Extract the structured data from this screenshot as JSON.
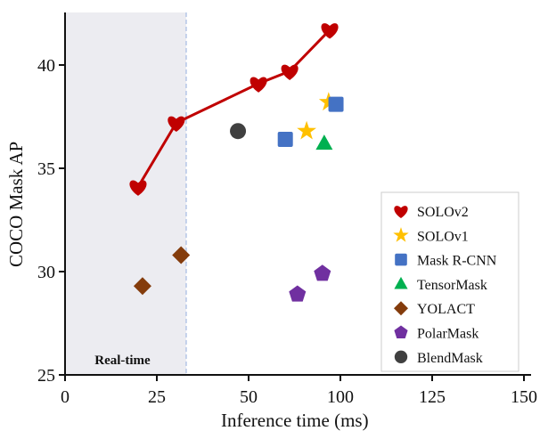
{
  "chart_data": {
    "type": "scatter",
    "title": "",
    "xlabel": "Inference time (ms)",
    "ylabel": "COCO Mask AP",
    "x_ticks": [
      0,
      25,
      50,
      100,
      125,
      150
    ],
    "x_tick_labels": [
      "0",
      "25",
      "50",
      "100",
      "125",
      "150"
    ],
    "x_axis_note": "non-uniform axis: tick labels are evenly spaced",
    "y_ticks": [
      25,
      30,
      35,
      40
    ],
    "y_tick_labels": [
      "25",
      "30",
      "35",
      "40"
    ],
    "xlim": [
      0,
      150
    ],
    "ylim": [
      25,
      42.5
    ],
    "grid": false,
    "legend_position": "lower-right",
    "shaded_region": {
      "label": "Real-time",
      "x_from": 0,
      "x_to": 33,
      "color": "#ececf1",
      "boundary_color": "#b4c6e7"
    },
    "series": [
      {
        "name": "SOLOv2",
        "marker": "heart",
        "color": "#c00000",
        "line": true,
        "x": [
          19.9,
          30.3,
          55.4,
          72.4,
          94.2
        ],
        "y": [
          34.1,
          37.2,
          39.1,
          39.7,
          41.7
        ]
      },
      {
        "name": "SOLOv1",
        "marker": "star",
        "color": "#ffc000",
        "line": false,
        "x": [
          81.6,
          93.6
        ],
        "y": [
          36.8,
          38.2
        ]
      },
      {
        "name": "Mask R-CNN",
        "marker": "square",
        "color": "#4472c4",
        "line": false,
        "x": [
          70.0,
          97.6
        ],
        "y": [
          36.4,
          38.1
        ]
      },
      {
        "name": "TensorMask",
        "marker": "triangle",
        "color": "#00b050",
        "line": false,
        "x": [
          91.2
        ],
        "y": [
          36.2
        ]
      },
      {
        "name": "YOLACT",
        "marker": "diamond",
        "color": "#843c0c",
        "line": false,
        "x": [
          21.1,
          31.6
        ],
        "y": [
          29.3,
          30.8
        ]
      },
      {
        "name": "PolarMask",
        "marker": "pentagon",
        "color": "#7030a0",
        "line": false,
        "x": [
          76.6,
          90.2
        ],
        "y": [
          28.9,
          29.9
        ]
      },
      {
        "name": "BlendMask",
        "marker": "circle",
        "color": "#404040",
        "line": false,
        "x": [
          47.1
        ],
        "y": [
          36.8
        ]
      }
    ]
  }
}
